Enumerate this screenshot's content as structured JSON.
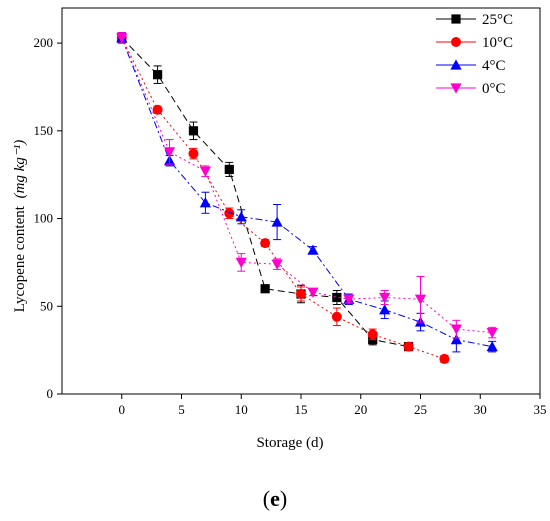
{
  "chart_data": {
    "type": "line",
    "xlabel": "Storage (d)",
    "ylabel": "Lycopene content",
    "ylabel_unit": "(mg kg⁻¹)",
    "xlim": [
      -5,
      35
    ],
    "ylim": [
      0,
      220
    ],
    "xticks": [
      0,
      5,
      10,
      15,
      20,
      25,
      30,
      35
    ],
    "yticks": [
      0,
      50,
      100,
      150,
      200
    ],
    "grid": false,
    "legend_position": "top-right",
    "series": [
      {
        "name": "25°C",
        "color": "#000000",
        "marker": "square",
        "dash": "dashed",
        "points": [
          {
            "x": 0,
            "y": 203,
            "err": 3
          },
          {
            "x": 3,
            "y": 182,
            "err": 5
          },
          {
            "x": 6,
            "y": 150,
            "err": 5
          },
          {
            "x": 9,
            "y": 128,
            "err": 4
          },
          {
            "x": 12,
            "y": 60,
            "err": 2
          },
          {
            "x": 15,
            "y": 57,
            "err": 5
          },
          {
            "x": 18,
            "y": 55,
            "err": 4
          },
          {
            "x": 21,
            "y": 31,
            "err": 3
          },
          {
            "x": 24,
            "y": 27,
            "err": 2
          }
        ]
      },
      {
        "name": "10°C",
        "color": "#ff0000",
        "marker": "circle",
        "dash": "dotted",
        "points": [
          {
            "x": 0,
            "y": 203,
            "err": 3
          },
          {
            "x": 3,
            "y": 162,
            "err": 2
          },
          {
            "x": 6,
            "y": 137,
            "err": 3
          },
          {
            "x": 9,
            "y": 103,
            "err": 3
          },
          {
            "x": 12,
            "y": 86,
            "err": 2
          },
          {
            "x": 15,
            "y": 57,
            "err": 4
          },
          {
            "x": 18,
            "y": 44,
            "err": 5
          },
          {
            "x": 21,
            "y": 34,
            "err": 3
          },
          {
            "x": 24,
            "y": 27,
            "err": 2
          },
          {
            "x": 27,
            "y": 20,
            "err": 2
          }
        ]
      },
      {
        "name": "4°C",
        "color": "#0000ff",
        "marker": "triangle-up",
        "dash": "dashdot",
        "points": [
          {
            "x": 0,
            "y": 203,
            "err": 3
          },
          {
            "x": 4,
            "y": 133,
            "err": 3
          },
          {
            "x": 7,
            "y": 109,
            "err": 6
          },
          {
            "x": 10,
            "y": 101,
            "err": 4
          },
          {
            "x": 13,
            "y": 98,
            "err": 10
          },
          {
            "x": 16,
            "y": 82,
            "err": 2
          },
          {
            "x": 19,
            "y": 54,
            "err": 3
          },
          {
            "x": 22,
            "y": 48,
            "err": 5
          },
          {
            "x": 25,
            "y": 41,
            "err": 5
          },
          {
            "x": 28,
            "y": 31,
            "err": 7
          },
          {
            "x": 31,
            "y": 27,
            "err": 3
          }
        ]
      },
      {
        "name": "0°C",
        "color": "#ff00cc",
        "marker": "triangle-down",
        "dash": "dotted",
        "points": [
          {
            "x": 0,
            "y": 203,
            "err": 3
          },
          {
            "x": 4,
            "y": 138,
            "err": 7
          },
          {
            "x": 7,
            "y": 127,
            "err": 3
          },
          {
            "x": 10,
            "y": 75,
            "err": 5
          },
          {
            "x": 13,
            "y": 74,
            "err": 3
          },
          {
            "x": 16,
            "y": 58,
            "err": 2
          },
          {
            "x": 19,
            "y": 54,
            "err": 2
          },
          {
            "x": 22,
            "y": 55,
            "err": 4
          },
          {
            "x": 25,
            "y": 54,
            "err": 13
          },
          {
            "x": 28,
            "y": 37,
            "err": 5
          },
          {
            "x": 31,
            "y": 35,
            "err": 3
          }
        ]
      }
    ]
  },
  "panel_label": {
    "open": "(",
    "letter": "e",
    "close": ")"
  }
}
